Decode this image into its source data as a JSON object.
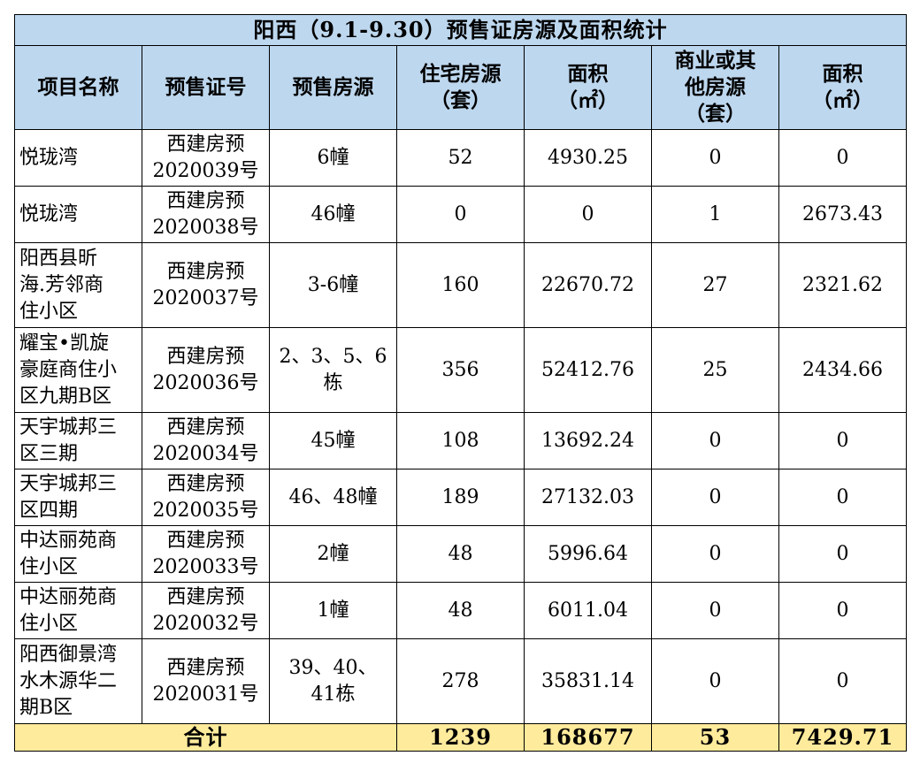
{
  "title": "阳西（9.1-9.30）预售证房源及面积统计",
  "headers": {
    "project": "项目名称",
    "license": "预售证号",
    "source": "预售房源",
    "res_units": [
      "住宅房源",
      "（套）"
    ],
    "res_area": [
      "面积",
      "（㎡）"
    ],
    "com_units": [
      "商业或其",
      "他房源",
      "（套）"
    ],
    "com_area": [
      "面积",
      "（㎡）"
    ]
  },
  "rows": [
    {
      "project": [
        "悦珑湾"
      ],
      "license": [
        "西建房预",
        "2020039号"
      ],
      "source": [
        "6幢"
      ],
      "res_units": "52",
      "res_area": "4930.25",
      "com_units": "0",
      "com_area": "0"
    },
    {
      "project": [
        "悦珑湾"
      ],
      "license": [
        "西建房预",
        "2020038号"
      ],
      "source": [
        "46幢"
      ],
      "res_units": "0",
      "res_area": "0",
      "com_units": "1",
      "com_area": "2673.43"
    },
    {
      "project": [
        "阳西县昕",
        "海.芳邻商",
        "住小区"
      ],
      "license": [
        "西建房预",
        "2020037号"
      ],
      "source": [
        "3-6幢"
      ],
      "res_units": "160",
      "res_area": "22670.72",
      "com_units": "27",
      "com_area": "2321.62"
    },
    {
      "project": [
        "耀宝•凯旋",
        "豪庭商住小",
        "区九期B区"
      ],
      "license": [
        "西建房预",
        "2020036号"
      ],
      "source": [
        "2、3、5、6",
        "栋"
      ],
      "res_units": "356",
      "res_area": "52412.76",
      "com_units": "25",
      "com_area": "2434.66"
    },
    {
      "project": [
        "天宇城邦三",
        "区三期"
      ],
      "license": [
        "西建房预",
        "2020034号"
      ],
      "source": [
        "45幢"
      ],
      "res_units": "108",
      "res_area": "13692.24",
      "com_units": "0",
      "com_area": "0"
    },
    {
      "project": [
        "天宇城邦三",
        "区四期"
      ],
      "license": [
        "西建房预",
        "2020035号"
      ],
      "source": [
        "46、48幢"
      ],
      "res_units": "189",
      "res_area": "27132.03",
      "com_units": "0",
      "com_area": "0"
    },
    {
      "project": [
        "中达丽苑商",
        "住小区"
      ],
      "license": [
        "西建房预",
        "2020033号"
      ],
      "source": [
        "2幢"
      ],
      "res_units": "48",
      "res_area": "5996.64",
      "com_units": "0",
      "com_area": "0"
    },
    {
      "project": [
        "中达丽苑商",
        "住小区"
      ],
      "license": [
        "西建房预",
        "2020032号"
      ],
      "source": [
        "1幢"
      ],
      "res_units": "48",
      "res_area": "6011.04",
      "com_units": "0",
      "com_area": "0"
    },
    {
      "project": [
        "阳西御景湾",
        "水木源华二",
        "期B区"
      ],
      "license": [
        "西建房预",
        "2020031号"
      ],
      "source": [
        "39、40、",
        "41栋"
      ],
      "res_units": "278",
      "res_area": "35831.14",
      "com_units": "0",
      "com_area": "0"
    }
  ],
  "total": {
    "label": "合计",
    "res_units": "1239",
    "res_area": "168677",
    "com_units": "53",
    "com_area": "7429.71"
  },
  "colors": {
    "header_bg": "#bdd7ee",
    "total_bg": "#ffeb9c"
  }
}
